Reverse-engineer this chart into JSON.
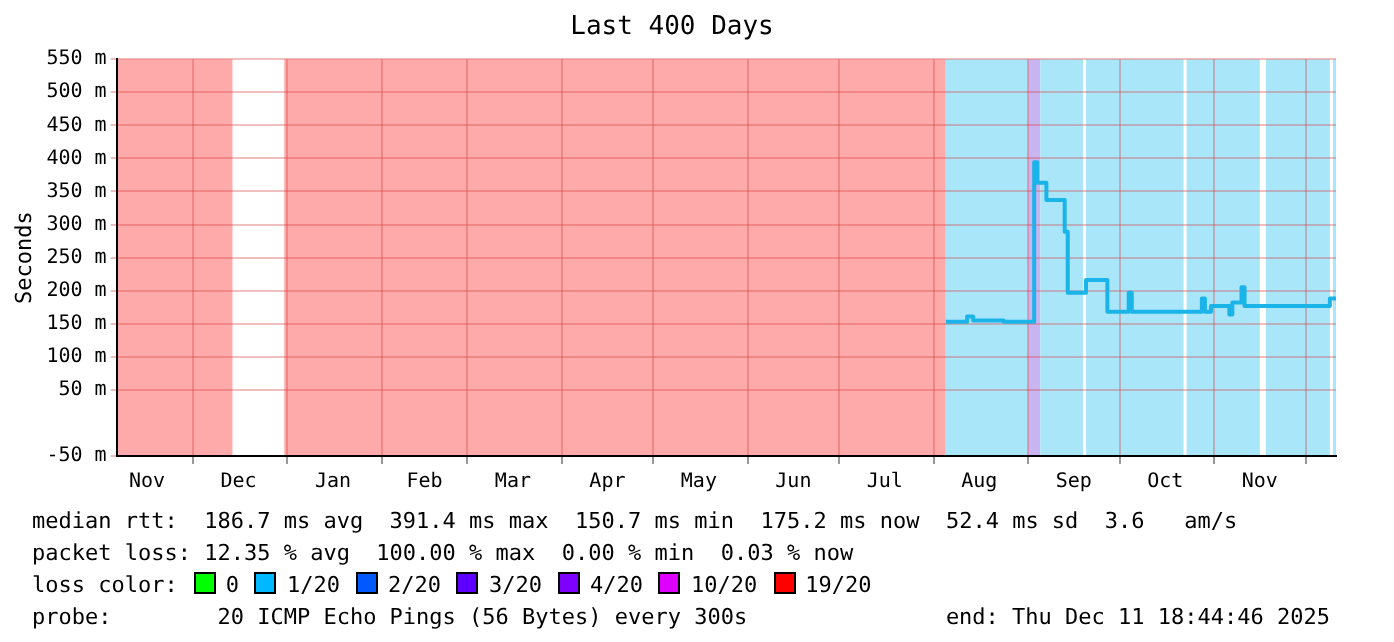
{
  "chart_data": {
    "type": "step",
    "title": "Last 400 Days",
    "ylabel": "Seconds",
    "xlim": [
      "2024-11-06",
      "2025-12-11"
    ],
    "xticks": [
      {
        "value": "2024-11-16",
        "label": "Nov"
      },
      {
        "value": "2024-12-01",
        "label": null
      },
      {
        "value": "2024-12-16",
        "label": "Dec"
      },
      {
        "value": "2025-01-01",
        "label": null
      },
      {
        "value": "2025-01-16",
        "label": "Jan"
      },
      {
        "value": "2025-02-01",
        "label": null
      },
      {
        "value": "2025-02-15",
        "label": "Feb"
      },
      {
        "value": "2025-03-01",
        "label": null
      },
      {
        "value": "2025-03-16",
        "label": "Mar"
      },
      {
        "value": "2025-04-01",
        "label": null
      },
      {
        "value": "2025-04-16",
        "label": "Apr"
      },
      {
        "value": "2025-05-01",
        "label": null
      },
      {
        "value": "2025-05-16",
        "label": "May"
      },
      {
        "value": "2025-06-01",
        "label": null
      },
      {
        "value": "2025-06-16",
        "label": "Jun"
      },
      {
        "value": "2025-07-01",
        "label": null
      },
      {
        "value": "2025-07-16",
        "label": "Jul"
      },
      {
        "value": "2025-08-01",
        "label": null
      },
      {
        "value": "2025-08-16",
        "label": "Aug"
      },
      {
        "value": "2025-09-01",
        "label": null
      },
      {
        "value": "2025-09-16",
        "label": "Sep"
      },
      {
        "value": "2025-10-01",
        "label": null
      },
      {
        "value": "2025-10-16",
        "label": "Oct"
      },
      {
        "value": "2025-11-01",
        "label": null
      },
      {
        "value": "2025-11-16",
        "label": "Nov"
      },
      {
        "value": "2025-12-01",
        "label": null
      }
    ],
    "ylim": [
      -50,
      550
    ],
    "yticks": [
      {
        "value": -50,
        "label": "-50 m"
      },
      {
        "value": 50,
        "label": "50 m"
      },
      {
        "value": 100,
        "label": "100 m"
      },
      {
        "value": 150,
        "label": "150 m"
      },
      {
        "value": 200,
        "label": "200 m"
      },
      {
        "value": 250,
        "label": "250 m"
      },
      {
        "value": 300,
        "label": "300 m"
      },
      {
        "value": 350,
        "label": "350 m"
      },
      {
        "value": 400,
        "label": "400 m"
      },
      {
        "value": 450,
        "label": "450 m"
      },
      {
        "value": 500,
        "label": "500 m"
      },
      {
        "value": 550,
        "label": "550 m"
      }
    ],
    "grid": true,
    "legend": "bottom",
    "legend_title": "loss color:",
    "bands": [
      {
        "axis": "x",
        "from": "2024-11-06",
        "to": "2024-12-14",
        "color": "#ffaaaa"
      },
      {
        "axis": "x",
        "from": "2024-12-31",
        "to": "2025-08-05",
        "color": "#ffaaaa"
      },
      {
        "axis": "x",
        "from": "2025-08-05",
        "to": "2025-09-01",
        "color": "#aae6fa"
      },
      {
        "axis": "x",
        "from": "2025-09-01",
        "to": "2025-09-05",
        "color": "#c8b4f0"
      },
      {
        "axis": "x",
        "from": "2025-09-05",
        "to": "2025-09-19",
        "color": "#aae6fa"
      },
      {
        "axis": "x",
        "from": "2025-09-20",
        "to": "2025-10-22",
        "color": "#aae6fa"
      },
      {
        "axis": "x",
        "from": "2025-10-23",
        "to": "2025-11-16",
        "color": "#aae6fa"
      },
      {
        "axis": "x",
        "from": "2025-11-18",
        "to": "2025-12-09",
        "color": "#aae6fa"
      },
      {
        "axis": "x",
        "from": "2025-12-10",
        "to": "2025-12-11",
        "color": "#aae6fa"
      }
    ],
    "series": [
      {
        "color": "#1ab4e8",
        "x": [
          "2025-08-05",
          "2025-08-12",
          "2025-08-14",
          "2025-08-24",
          "2025-09-03",
          "2025-09-04",
          "2025-09-07",
          "2025-09-13",
          "2025-09-14",
          "2025-09-20",
          "2025-09-27",
          "2025-10-04",
          "2025-10-05",
          "2025-10-28",
          "2025-10-29",
          "2025-10-31",
          "2025-11-06",
          "2025-11-07",
          "2025-11-10",
          "2025-11-11",
          "2025-12-09",
          "2025-12-11"
        ],
        "values": [
          153,
          161,
          155,
          153,
          394,
          363,
          337,
          289,
          197,
          216,
          168,
          197,
          168,
          188,
          168,
          177,
          164,
          182,
          205,
          177,
          188,
          188
        ]
      },
      {
        "name": "0",
        "color": "#00ff00"
      },
      {
        "name": "1/20",
        "color": "#00b8ff"
      },
      {
        "name": "2/20",
        "color": "#0059ff"
      },
      {
        "name": "3/20",
        "color": "#5e00ff"
      },
      {
        "name": "4/20",
        "color": "#7e00ff"
      },
      {
        "name": "10/20",
        "color": "#dd00ff"
      },
      {
        "name": "19/20",
        "color": "#ff0000"
      }
    ],
    "annotations": [
      "median rtt:  186.7 ms avg  391.4 ms max  150.7 ms min  175.2 ms now  52.4 ms sd  3.6   am/s",
      "packet loss: 12.35 % avg  100.00 % max  0.00 % min  0.03 % now",
      "probe:        20 ICMP Echo Pings (56 Bytes) every 300s",
      "end: Thu Dec 11 18:44:46 2025"
    ]
  }
}
